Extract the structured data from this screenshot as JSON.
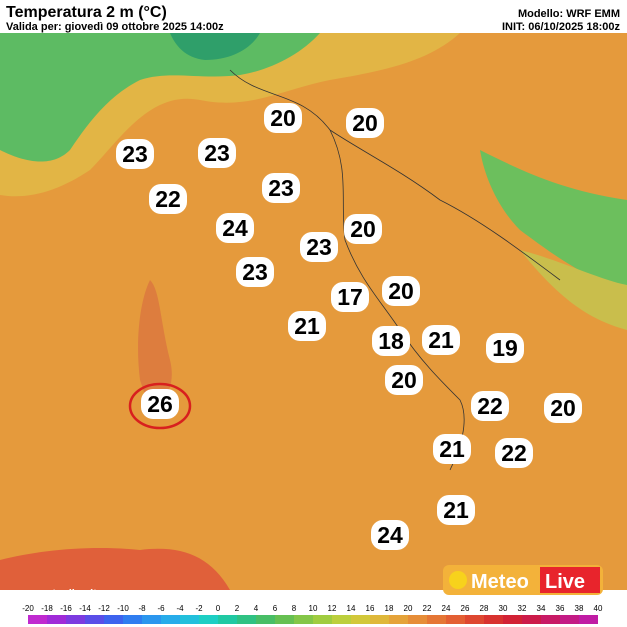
{
  "header": {
    "title": "Temperatura 2 m (°C)",
    "valid": "Valida per: giovedì 09 ottobre 2025 14:00z",
    "model": "Modello: WRF EMM",
    "init": "INIT: 06/10/2025 18:00z"
  },
  "labels": [
    20,
    20,
    23,
    23,
    22,
    23,
    24,
    23,
    20,
    23,
    17,
    20,
    21,
    18,
    21,
    19,
    20,
    26,
    22,
    20,
    21,
    22,
    21,
    24
  ],
  "scale": {
    "ticks": [
      -20,
      -18,
      -16,
      -14,
      -12,
      -10,
      -8,
      -6,
      -4,
      -2,
      0,
      2,
      4,
      6,
      8,
      10,
      12,
      14,
      16,
      18,
      20,
      22,
      24,
      26,
      28,
      30,
      32,
      34,
      36,
      38,
      40
    ]
  },
  "footer": {
    "website": "www.meteolive.it",
    "logo_left": "Meteo",
    "logo_right": "Live"
  }
}
